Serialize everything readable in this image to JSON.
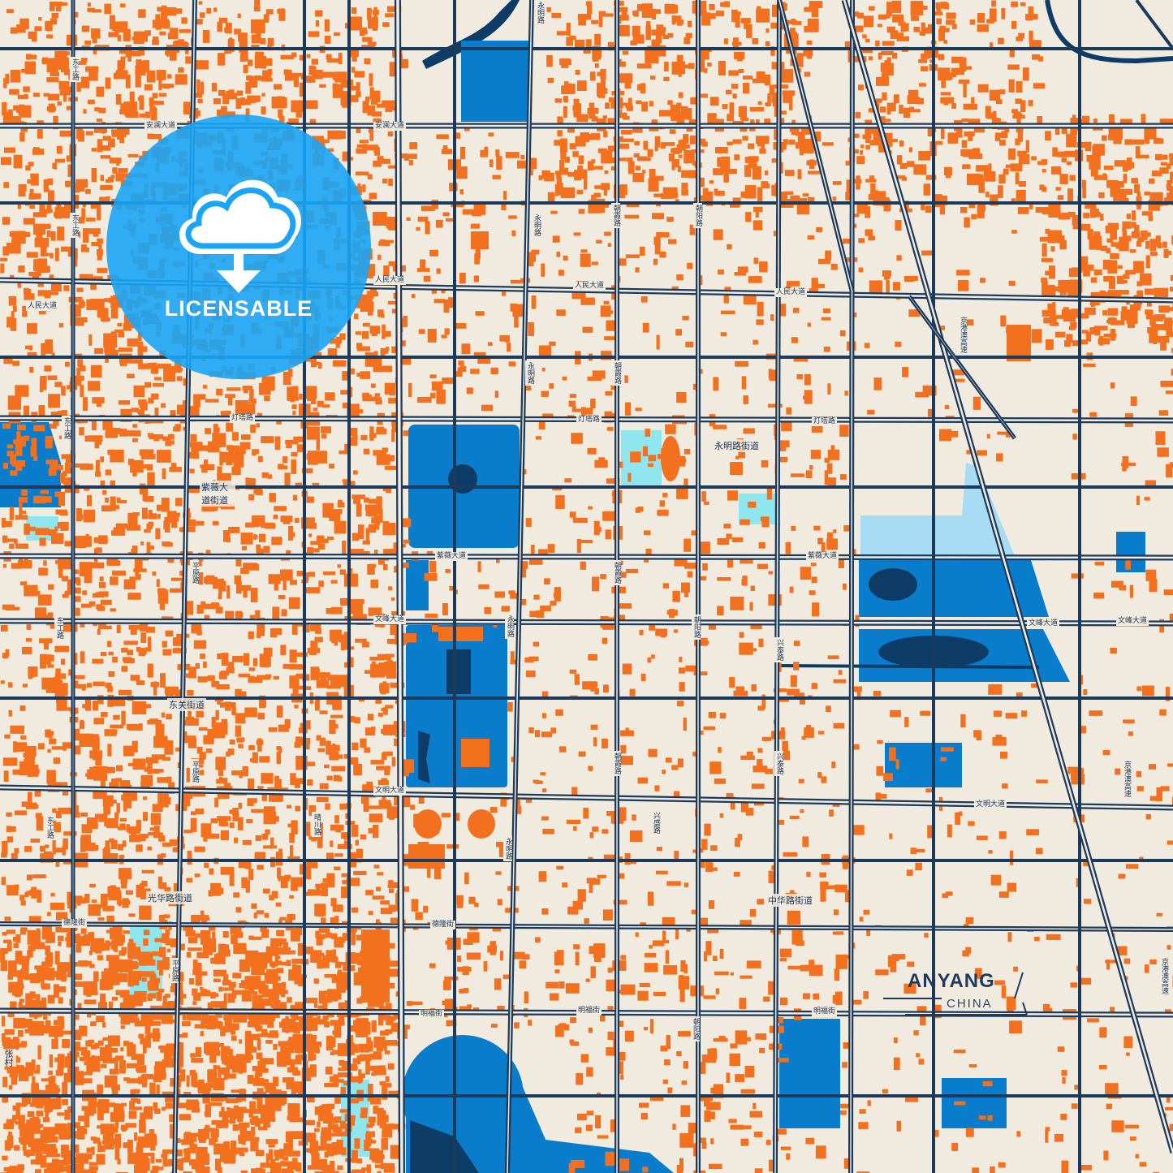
{
  "map": {
    "city": "ANYANG",
    "country": "CHINA",
    "colors": {
      "background": "#f1ebdf",
      "road": "#1b3a5c",
      "building": "#f2701e",
      "water": "#0a7ccc",
      "water_dark": "#0d3d66",
      "water_light": "#a8dcf5",
      "cyan": "#8fe6ef",
      "badge": "#19a5f5"
    },
    "badge": {
      "label": "LICENSABLE",
      "icon": "cloud-download-icon"
    },
    "roads_horizontal": [
      {
        "id": "anlan-1",
        "label": "安澜大道"
      },
      {
        "id": "anlan-2",
        "label": "安澜大道"
      },
      {
        "id": "renmin-1",
        "label": "人民大道"
      },
      {
        "id": "renmin-2",
        "label": "人民大道"
      },
      {
        "id": "renmin-3",
        "label": "人民大道"
      },
      {
        "id": "renmin-4",
        "label": "人民大道"
      },
      {
        "id": "dengta-1",
        "label": "灯塔路"
      },
      {
        "id": "dengta-2",
        "label": "灯塔路"
      },
      {
        "id": "dengta-3",
        "label": "灯塔路"
      },
      {
        "id": "ziwei-1",
        "label": "紫薇大道"
      },
      {
        "id": "ziwei-2",
        "label": "紫薇大道"
      },
      {
        "id": "wenfeng-1",
        "label": "文峰大道"
      },
      {
        "id": "wenfeng-2",
        "label": "文峰大道"
      },
      {
        "id": "wenfeng-3",
        "label": "文峰大道"
      },
      {
        "id": "wenming-1",
        "label": "文明大道"
      },
      {
        "id": "wenming-2",
        "label": "文明大道"
      },
      {
        "id": "delong-1",
        "label": "德隆街"
      },
      {
        "id": "delong-2",
        "label": "德隆街"
      },
      {
        "id": "mingfu-1",
        "label": "明福街"
      },
      {
        "id": "mingfu-2",
        "label": "明福街"
      },
      {
        "id": "mingfu-3",
        "label": "明福街"
      }
    ],
    "roads_vertical": [
      {
        "id": "donggong-1",
        "label": "东工路"
      },
      {
        "id": "donggong-2",
        "label": "东工路"
      },
      {
        "id": "donggong-3",
        "label": "东工路"
      },
      {
        "id": "donggong-4",
        "label": "东工路"
      },
      {
        "id": "donggong-5",
        "label": "东工路"
      },
      {
        "id": "pingyuan-1",
        "label": "平原路"
      },
      {
        "id": "pingyuan-2",
        "label": "平原路"
      },
      {
        "id": "pingyuan-3",
        "label": "平原路"
      },
      {
        "id": "yongming-1",
        "label": "永明路"
      },
      {
        "id": "yongming-2",
        "label": "永明路"
      },
      {
        "id": "yongming-3",
        "label": "永明路"
      },
      {
        "id": "yongming-4",
        "label": "永明路"
      },
      {
        "id": "yongming-5",
        "label": "永明路"
      },
      {
        "id": "zhaoxia-1",
        "label": "朝霞路"
      },
      {
        "id": "zhaoxia-2",
        "label": "朝霞路"
      },
      {
        "id": "zhaoxia-3",
        "label": "朝霞路"
      },
      {
        "id": "zhaoxia-4",
        "label": "朝霞路"
      },
      {
        "id": "chaoyang-1",
        "label": "朝阳路"
      },
      {
        "id": "chaoyang-2",
        "label": "朝阳路"
      },
      {
        "id": "chaoyang-3",
        "label": "朝阳路"
      },
      {
        "id": "xingtai-1",
        "label": "兴泰路"
      },
      {
        "id": "xingtai-2",
        "label": "兴泰路"
      },
      {
        "id": "xingsheng",
        "label": "兴盛路"
      },
      {
        "id": "qingchuan",
        "label": "晴川路"
      },
      {
        "id": "jinggangao-1",
        "label": "京港澳高速"
      },
      {
        "id": "jinggangao-2",
        "label": "京港澳高速"
      },
      {
        "id": "jinggangao-3",
        "label": "京港澳高速"
      }
    ],
    "districts": [
      {
        "id": "yongminglu",
        "label": "永明路街道"
      },
      {
        "id": "ziwei",
        "label": "紫薇大道街道"
      },
      {
        "id": "dongguan",
        "label": "东关街道"
      },
      {
        "id": "guanghua",
        "label": "光华路街道"
      },
      {
        "id": "zhonghua",
        "label": "中华路街道"
      },
      {
        "id": "zhangcun",
        "label": "张村"
      }
    ]
  }
}
